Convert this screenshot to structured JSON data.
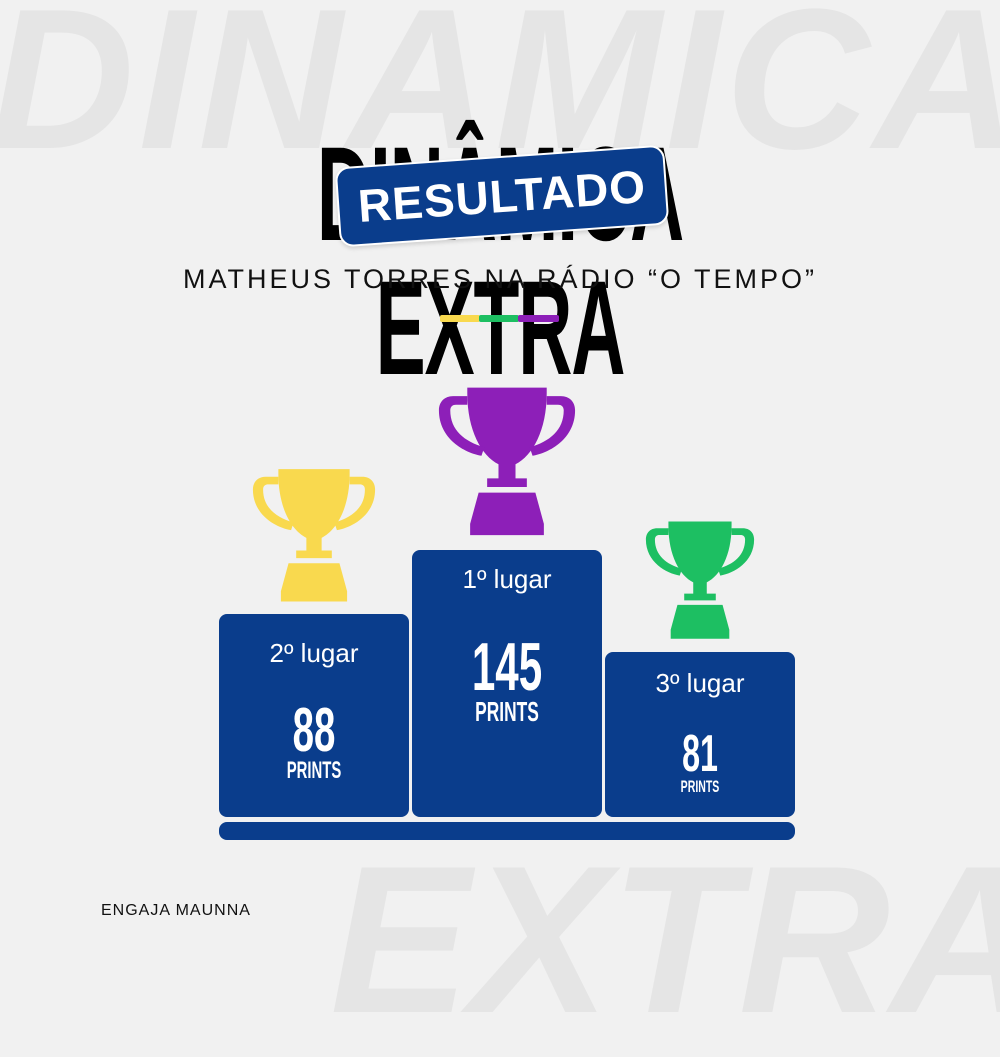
{
  "watermark": {
    "top": "DINAMICA",
    "bottom": "EXTRA"
  },
  "title": "DINÂMICA EXTRA",
  "badge": "RESULTADO",
  "subtitle": "MATHEUS TORRES NA RÁDIO “O TEMPO”",
  "colors": {
    "blue": "#0a3d8c",
    "yellow": "#f9d94e",
    "green": "#1dbf62",
    "purple": "#8d1fb8"
  },
  "podium": [
    {
      "place": "2º lugar",
      "value": "88",
      "unit": "PRINTS",
      "trophy_color": "#f9d94e"
    },
    {
      "place": "1º lugar",
      "value": "145",
      "unit": "PRINTS",
      "trophy_color": "#8d1fb8"
    },
    {
      "place": "3º lugar",
      "value": "81",
      "unit": "PRINTS",
      "trophy_color": "#1dbf62"
    }
  ],
  "footer": "ENGAJA MAUNNA"
}
